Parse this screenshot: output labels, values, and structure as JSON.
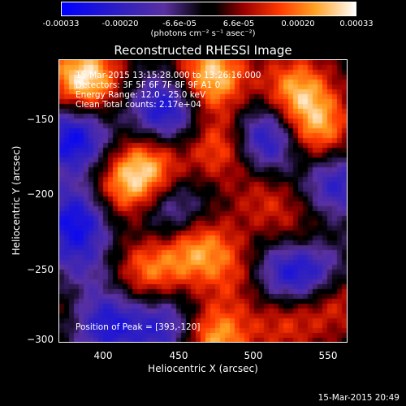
{
  "chart_data": {
    "type": "heatmap",
    "title": "Reconstructed RHESSI Image",
    "xlabel": "Heliocentric X (arcsec)",
    "ylabel": "Heliocentric Y (arcsec)",
    "xlim": [
      368,
      562
    ],
    "ylim": [
      -302,
      -112
    ],
    "x_ticks": [
      "400",
      "450",
      "500",
      "550"
    ],
    "y_ticks": [
      "−150",
      "−200",
      "−250",
      "−300"
    ],
    "annotations": [
      "15-Mar-2015 13:15:28.000 to 13:26:16.000",
      "Detectors: 3F 5F 6F 7F 8F 9F A1 0",
      "Energy Range: 12.0 - 25.0 keV",
      "Clean     Total counts: 2.17e+04"
    ],
    "peak_label": "Position of Peak = [393,-120]",
    "colorbar": {
      "ticks": [
        "-0.00033",
        "-0.00020",
        "-6.6e-05",
        "6.6e-05",
        "0.00020",
        "0.00033"
      ],
      "units": "(photons cm⁻² s⁻¹ asec⁻²)",
      "range": [
        -0.00033,
        0.00033
      ]
    },
    "blobs": [
      {
        "x": 385,
        "y": -125,
        "amp": 0.00033
      },
      {
        "x": 470,
        "y": -123,
        "amp": 0.0003
      },
      {
        "x": 528,
        "y": -133,
        "amp": 0.00024
      },
      {
        "x": 542,
        "y": -160,
        "amp": 0.00024
      },
      {
        "x": 428,
        "y": -185,
        "amp": 0.00024
      },
      {
        "x": 410,
        "y": -200,
        "amp": 0.00018
      },
      {
        "x": 478,
        "y": -170,
        "amp": 0.0002
      },
      {
        "x": 508,
        "y": -205,
        "amp": 0.00012
      },
      {
        "x": 460,
        "y": -238,
        "amp": 0.00024
      },
      {
        "x": 428,
        "y": -255,
        "amp": 0.0002
      },
      {
        "x": 490,
        "y": -255,
        "amp": 0.00014
      },
      {
        "x": 532,
        "y": -232,
        "amp": 0.00012
      },
      {
        "x": 552,
        "y": -272,
        "amp": 0.00018
      },
      {
        "x": 472,
        "y": -300,
        "amp": 0.00026
      },
      {
        "x": 520,
        "y": -288,
        "amp": 0.00014
      },
      {
        "x": 372,
        "y": -272,
        "amp": 0.0001
      },
      {
        "x": 378,
        "y": -165,
        "amp": -0.0003
      },
      {
        "x": 440,
        "y": -145,
        "amp": -0.00028
      },
      {
        "x": 508,
        "y": -165,
        "amp": -0.0003
      },
      {
        "x": 555,
        "y": -195,
        "amp": -0.00022
      },
      {
        "x": 380,
        "y": -220,
        "amp": -0.00028
      },
      {
        "x": 445,
        "y": -215,
        "amp": -0.0002
      },
      {
        "x": 540,
        "y": -255,
        "amp": -0.00026
      },
      {
        "x": 515,
        "y": -255,
        "amp": -0.0002
      },
      {
        "x": 400,
        "y": -290,
        "amp": -0.00024
      },
      {
        "x": 440,
        "y": -292,
        "amp": -0.00022
      },
      {
        "x": 380,
        "y": -255,
        "amp": -0.00014
      }
    ]
  },
  "footer": {
    "timestamp": "15-Mar-2015 20:49"
  }
}
